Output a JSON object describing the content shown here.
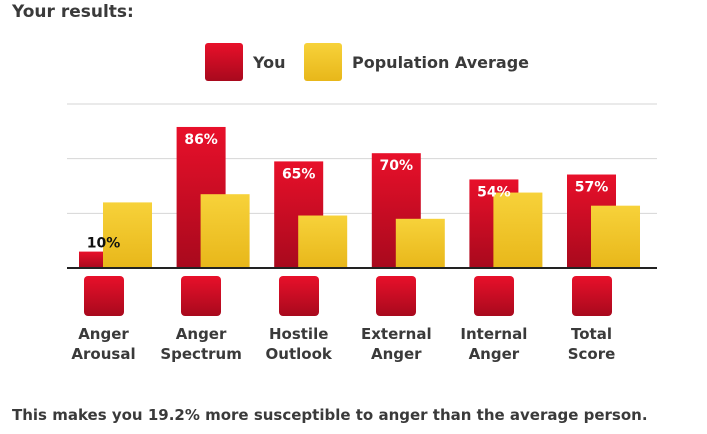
{
  "heading": "Your results:",
  "legend": {
    "you": "You",
    "population": "Population Average"
  },
  "colors": {
    "you_top": "#e8102a",
    "you_bottom": "#a8091d",
    "pop_top": "#f7d23a",
    "pop_bottom": "#e8b71a",
    "gridline": "#d6d6d6",
    "axis": "#222222"
  },
  "chart_data": {
    "type": "bar",
    "title": "",
    "xlabel": "",
    "ylabel": "",
    "ylim": [
      0,
      100
    ],
    "grid": true,
    "legend_position": "top",
    "categories": [
      "Anger Arousal",
      "Anger Spectrum",
      "Hostile Outlook",
      "External Anger",
      "Internal Anger",
      "Total Score"
    ],
    "category_lines": [
      [
        "Anger",
        "Arousal"
      ],
      [
        "Anger",
        "Spectrum"
      ],
      [
        "Hostile",
        "Outlook"
      ],
      [
        "External",
        "Anger"
      ],
      [
        "Internal",
        "Anger"
      ],
      [
        "Total",
        "Score"
      ]
    ],
    "category_icons": [
      "storm-cloud-icon",
      "spectrum-fan-icon",
      "hostile-head-icon",
      "external-anger-head-icon",
      "internal-anger-head-icon",
      "line-graph-icon"
    ],
    "series": [
      {
        "name": "You",
        "values": [
          10,
          86,
          65,
          70,
          54,
          57
        ],
        "labels": [
          "10%",
          "86%",
          "65%",
          "70%",
          "54%",
          "57%"
        ]
      },
      {
        "name": "Population Average",
        "values": [
          40,
          45,
          32,
          30,
          46,
          38
        ]
      }
    ]
  },
  "footer": "This makes you 19.2% more susceptible to anger than the average person."
}
